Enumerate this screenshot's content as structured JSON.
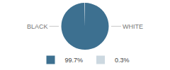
{
  "chart_data": {
    "type": "pie",
    "categories": [
      "99.7%",
      "0.3%"
    ],
    "values": [
      99.7,
      0.3
    ],
    "colors": [
      "#3d7090",
      "#ccd8e0"
    ],
    "annotations": [
      "BLACK",
      "WHITE"
    ],
    "legend": "bottom"
  }
}
